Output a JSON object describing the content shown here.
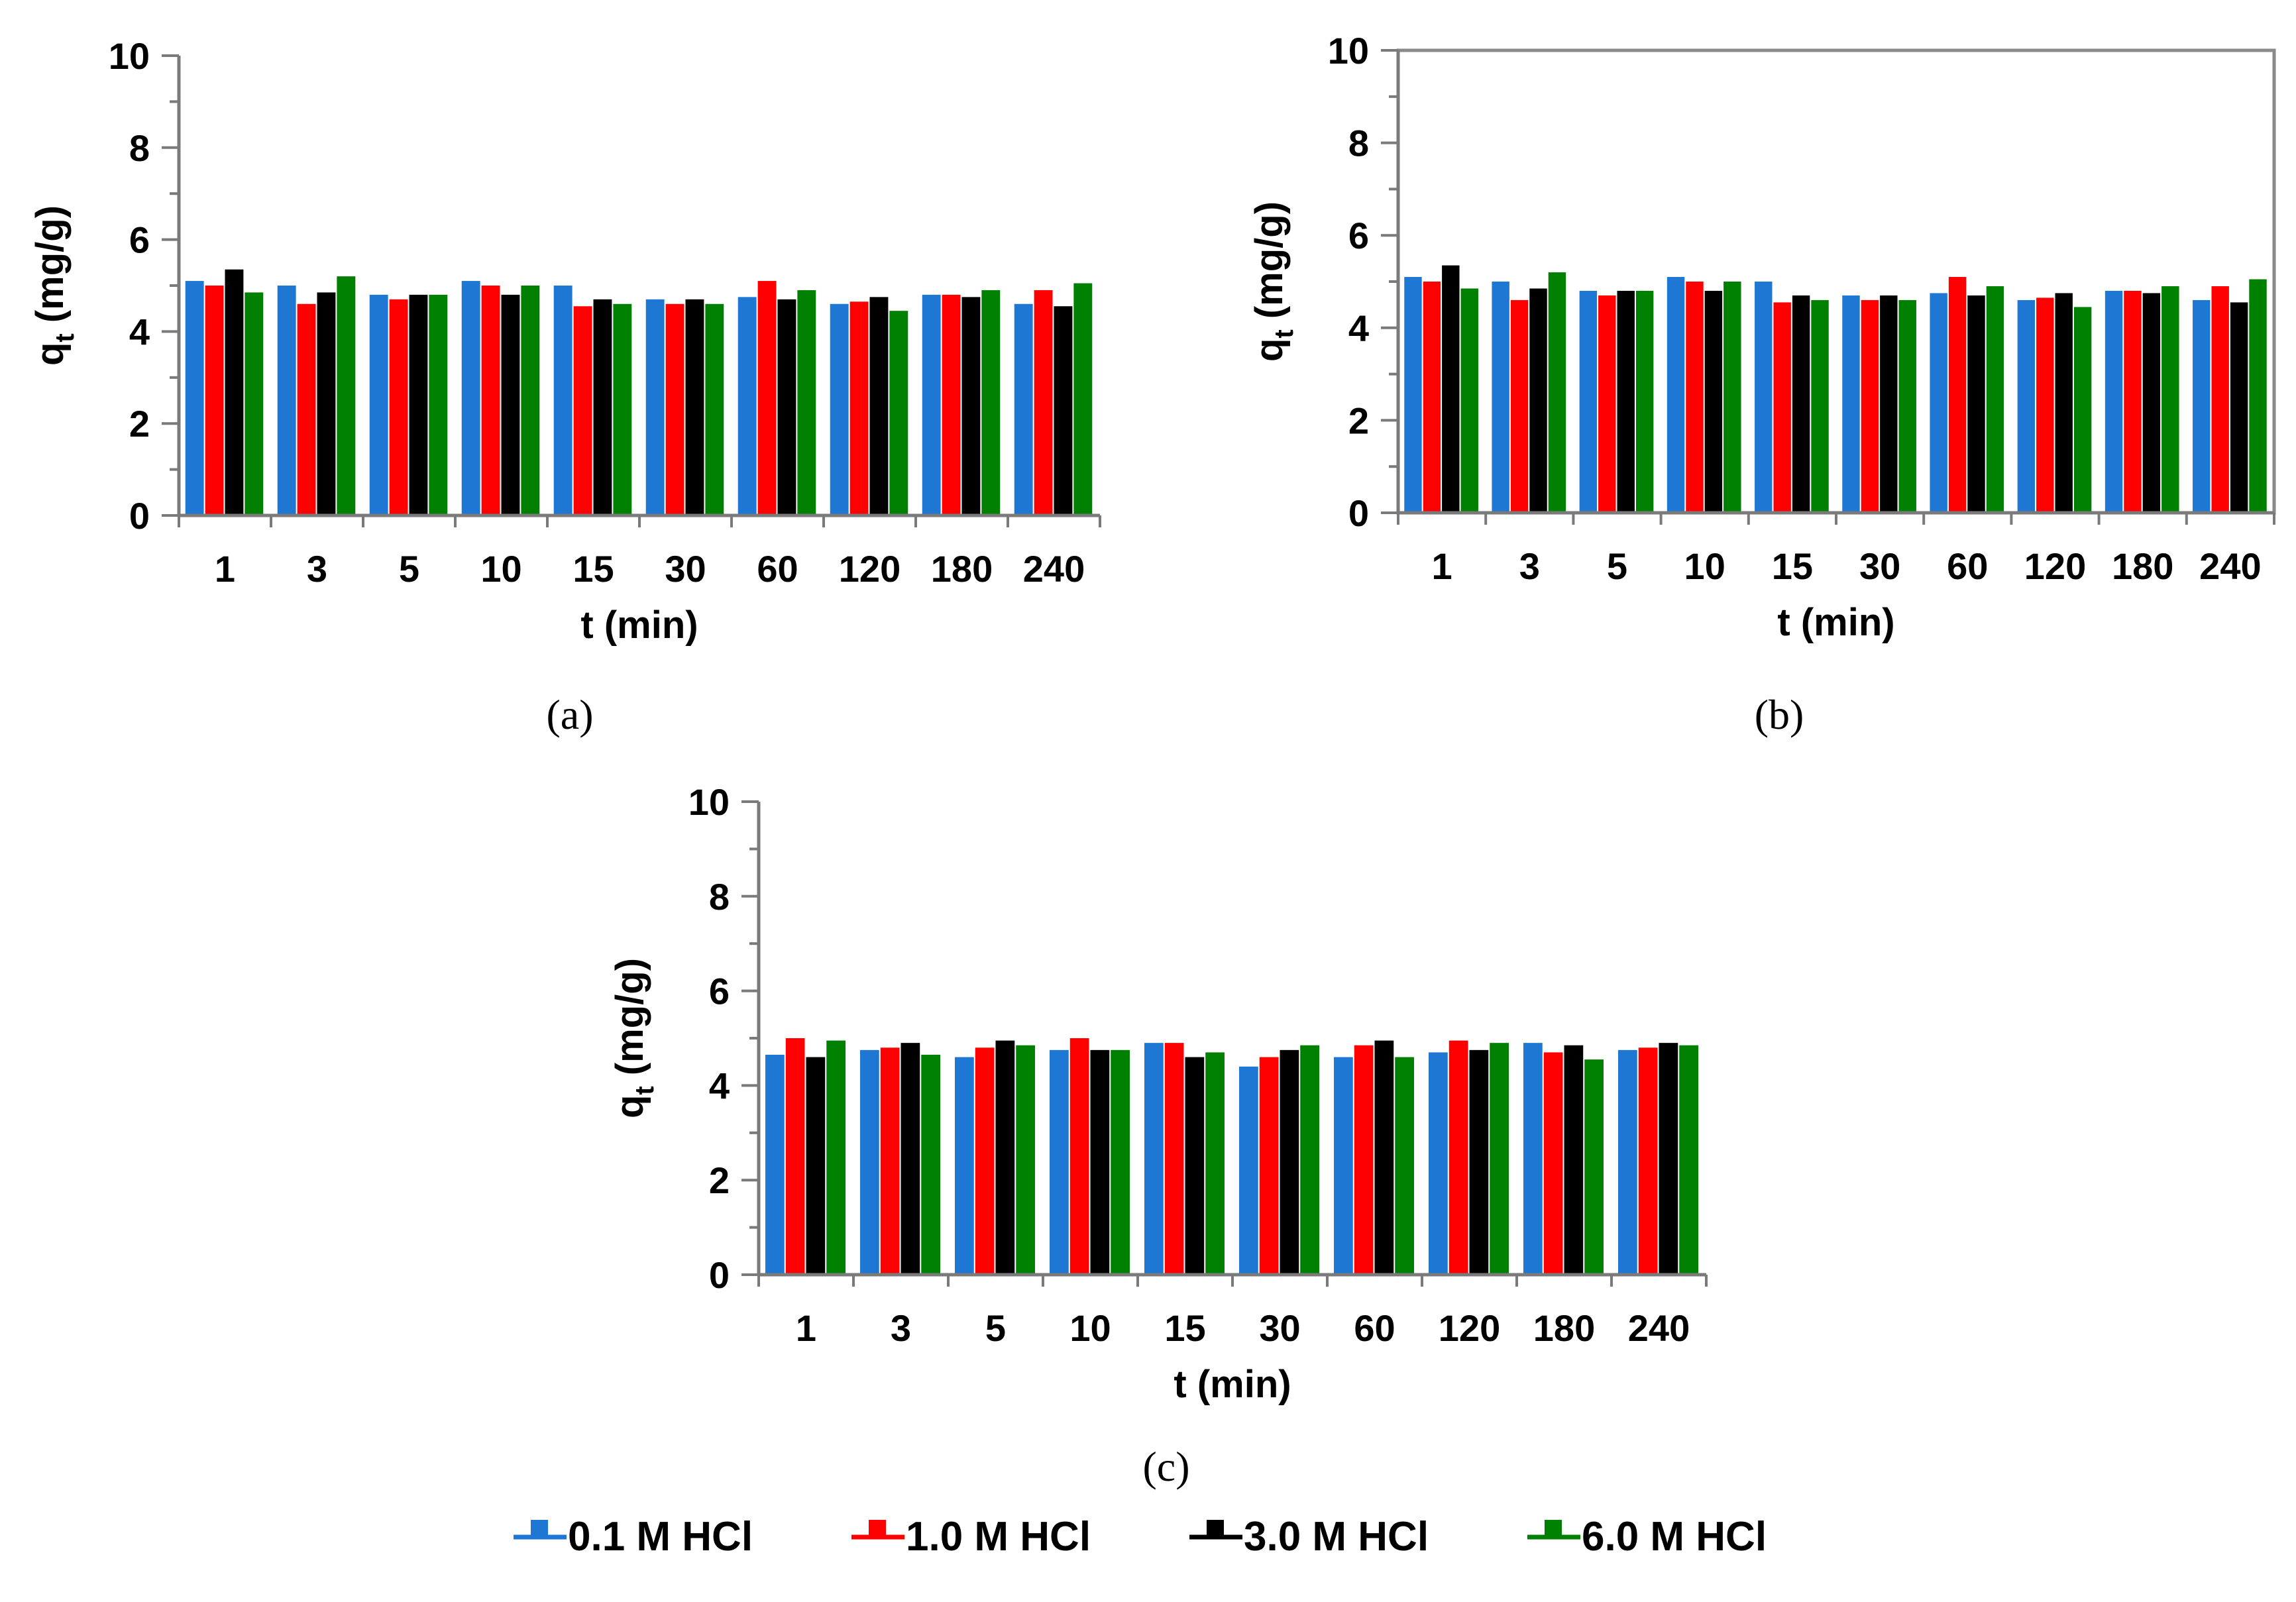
{
  "colors": {
    "s0": "#1f77d4",
    "s1": "#ff0000",
    "s2": "#000000",
    "s3": "#008000"
  },
  "legend": [
    "0.1 M HCl",
    "1.0 M HCl",
    "3.0 M HCl",
    "6.0 M HCl"
  ],
  "chart_data": [
    {
      "type": "bar",
      "caption": "(a)",
      "xlabel": "t (min)",
      "ylabel_main": "q",
      "ylabel_sub": "t",
      "ylabel_unit": " (mg/g)",
      "ylim": [
        0,
        10
      ],
      "yticks": [
        "0",
        "2",
        "4",
        "6",
        "8",
        "10"
      ],
      "categories": [
        "1",
        "3",
        "5",
        "10",
        "15",
        "30",
        "60",
        "120",
        "180",
        "240"
      ],
      "series": [
        {
          "name": "0.1 M HCl",
          "values": [
            5.1,
            5.0,
            4.8,
            5.1,
            5.0,
            4.7,
            4.75,
            4.6,
            4.8,
            4.6
          ]
        },
        {
          "name": "1.0 M HCl",
          "values": [
            5.0,
            4.6,
            4.7,
            5.0,
            4.55,
            4.6,
            5.1,
            4.65,
            4.8,
            4.9
          ]
        },
        {
          "name": "3.0 M HCl",
          "values": [
            5.35,
            4.85,
            4.8,
            4.8,
            4.7,
            4.7,
            4.7,
            4.75,
            4.75,
            4.55
          ]
        },
        {
          "name": "6.0 M HCl",
          "values": [
            4.85,
            5.2,
            4.8,
            5.0,
            4.6,
            4.6,
            4.9,
            4.45,
            4.9,
            5.05
          ]
        }
      ]
    },
    {
      "type": "bar",
      "caption": "(b)",
      "xlabel": "t (min)",
      "ylabel_main": "q",
      "ylabel_sub": "t",
      "ylabel_unit": " (mg/g)",
      "ylim": [
        0,
        10
      ],
      "yticks": [
        "0",
        "2",
        "4",
        "6",
        "8",
        "10"
      ],
      "categories": [
        "1",
        "3",
        "5",
        "10",
        "15",
        "30",
        "60",
        "120",
        "180",
        "240"
      ],
      "series": [
        {
          "name": "0.1 M HCl",
          "values": [
            5.1,
            5.0,
            4.8,
            5.1,
            5.0,
            4.7,
            4.75,
            4.6,
            4.8,
            4.6
          ]
        },
        {
          "name": "1.0 M HCl",
          "values": [
            5.0,
            4.6,
            4.7,
            5.0,
            4.55,
            4.6,
            5.1,
            4.65,
            4.8,
            4.9
          ]
        },
        {
          "name": "3.0 M HCl",
          "values": [
            5.35,
            4.85,
            4.8,
            4.8,
            4.7,
            4.7,
            4.7,
            4.75,
            4.75,
            4.55
          ]
        },
        {
          "name": "6.0 M HCl",
          "values": [
            4.85,
            5.2,
            4.8,
            5.0,
            4.6,
            4.6,
            4.9,
            4.45,
            4.9,
            5.05
          ]
        }
      ]
    },
    {
      "type": "bar",
      "caption": "(c)",
      "xlabel": "t (min)",
      "ylabel_main": "q",
      "ylabel_sub": "t",
      "ylabel_unit": " (mg/g)",
      "ylim": [
        0,
        10
      ],
      "yticks": [
        "0",
        "2",
        "4",
        "6",
        "8",
        "10"
      ],
      "categories": [
        "1",
        "3",
        "5",
        "10",
        "15",
        "30",
        "60",
        "120",
        "180",
        "240"
      ],
      "series": [
        {
          "name": "0.1 M HCl",
          "values": [
            4.65,
            4.75,
            4.6,
            4.75,
            4.9,
            4.4,
            4.6,
            4.7,
            4.9,
            4.75
          ]
        },
        {
          "name": "1.0 M HCl",
          "values": [
            5.0,
            4.8,
            4.8,
            5.0,
            4.9,
            4.6,
            4.85,
            4.95,
            4.7,
            4.8
          ]
        },
        {
          "name": "3.0 M HCl",
          "values": [
            4.6,
            4.9,
            4.95,
            4.75,
            4.6,
            4.75,
            4.95,
            4.75,
            4.85,
            4.9
          ]
        },
        {
          "name": "6.0 M HCl",
          "values": [
            4.95,
            4.65,
            4.85,
            4.75,
            4.7,
            4.85,
            4.6,
            4.9,
            4.55,
            4.85
          ]
        }
      ]
    }
  ]
}
